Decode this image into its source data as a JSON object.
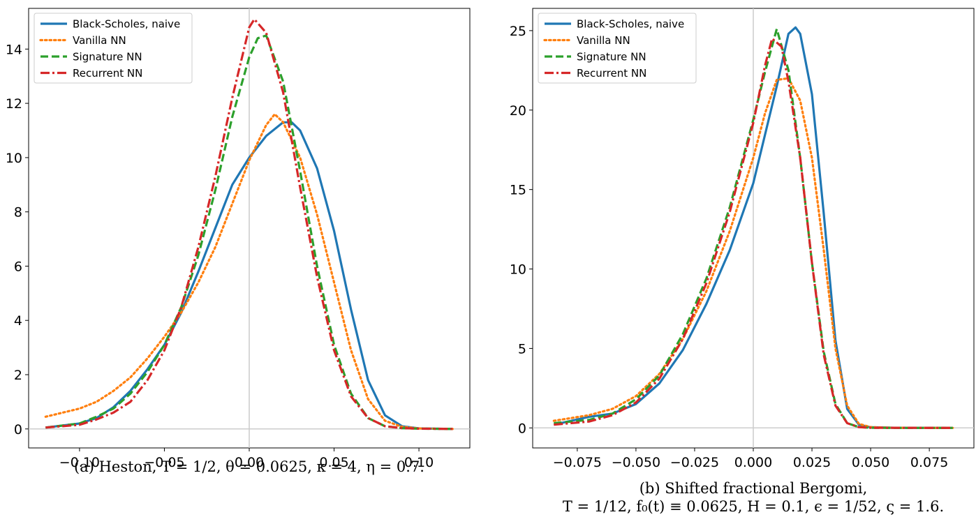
{
  "chart_data": [
    {
      "type": "line",
      "caption": "(a) Heston, T = 1/2, θ = 0.0625, κ = 4, η = 0.7.",
      "xlim": [
        -0.13,
        0.13
      ],
      "ylim": [
        -0.7,
        15.5
      ],
      "xticks": [
        -0.1,
        -0.05,
        0.0,
        0.05,
        0.1
      ],
      "xtick_labels": [
        "−0.10",
        "−0.05",
        "0.00",
        "0.05",
        "0.10"
      ],
      "yticks": [
        0,
        2,
        4,
        6,
        8,
        10,
        12,
        14
      ],
      "ytick_labels": [
        "0",
        "2",
        "4",
        "6",
        "8",
        "10",
        "12",
        "14"
      ],
      "reference_lines": {
        "x": 0,
        "y": 0
      },
      "legend": {
        "position": "top-left"
      },
      "series": [
        {
          "name": "Black-Scholes, naive",
          "color": "#1f77b4",
          "style": "solid",
          "x": [
            -0.12,
            -0.1,
            -0.09,
            -0.08,
            -0.07,
            -0.06,
            -0.05,
            -0.04,
            -0.03,
            -0.02,
            -0.01,
            0.0,
            0.01,
            0.02,
            0.025,
            0.03,
            0.04,
            0.05,
            0.06,
            0.07,
            0.08,
            0.09,
            0.1,
            0.12
          ],
          "y": [
            0.05,
            0.2,
            0.4,
            0.8,
            1.4,
            2.2,
            3.1,
            4.3,
            5.8,
            7.4,
            9.0,
            10.0,
            10.8,
            11.3,
            11.3,
            11.0,
            9.6,
            7.3,
            4.4,
            1.8,
            0.5,
            0.1,
            0.02,
            0.0
          ]
        },
        {
          "name": "Vanilla NN",
          "color": "#ff7f0e",
          "style": "dotted",
          "x": [
            -0.12,
            -0.1,
            -0.09,
            -0.08,
            -0.07,
            -0.06,
            -0.05,
            -0.04,
            -0.03,
            -0.02,
            -0.01,
            0.0,
            0.01,
            0.015,
            0.02,
            0.03,
            0.04,
            0.05,
            0.06,
            0.07,
            0.08,
            0.09,
            0.1,
            0.12
          ],
          "y": [
            0.45,
            0.75,
            1.0,
            1.4,
            1.9,
            2.6,
            3.4,
            4.3,
            5.4,
            6.7,
            8.3,
            9.9,
            11.2,
            11.6,
            11.3,
            10.0,
            7.9,
            5.4,
            2.9,
            1.1,
            0.3,
            0.08,
            0.02,
            0.0
          ]
        },
        {
          "name": "Signature NN",
          "color": "#2ca02c",
          "style": "dashed",
          "x": [
            -0.12,
            -0.1,
            -0.09,
            -0.08,
            -0.07,
            -0.06,
            -0.05,
            -0.04,
            -0.03,
            -0.02,
            -0.01,
            0.0,
            0.005,
            0.01,
            0.02,
            0.03,
            0.04,
            0.05,
            0.06,
            0.07,
            0.08,
            0.09,
            0.1,
            0.12
          ],
          "y": [
            0.05,
            0.2,
            0.45,
            0.75,
            1.3,
            2.1,
            3.1,
            4.5,
            6.4,
            8.8,
            11.5,
            13.7,
            14.4,
            14.5,
            12.8,
            9.5,
            6.0,
            3.1,
            1.3,
            0.4,
            0.1,
            0.03,
            0.01,
            0.0
          ]
        },
        {
          "name": "Recurrent NN",
          "color": "#d62728",
          "style": "dashdot",
          "x": [
            -0.12,
            -0.1,
            -0.09,
            -0.08,
            -0.07,
            -0.06,
            -0.05,
            -0.04,
            -0.03,
            -0.02,
            -0.01,
            0.0,
            0.003,
            0.01,
            0.02,
            0.03,
            0.04,
            0.05,
            0.06,
            0.07,
            0.08,
            0.09,
            0.1,
            0.12
          ],
          "y": [
            0.05,
            0.15,
            0.35,
            0.6,
            1.0,
            1.8,
            2.9,
            4.5,
            6.7,
            9.3,
            12.2,
            14.8,
            15.1,
            14.6,
            12.4,
            8.9,
            5.6,
            2.9,
            1.2,
            0.4,
            0.1,
            0.03,
            0.01,
            0.0
          ]
        }
      ]
    },
    {
      "type": "line",
      "caption_line1": "(b) Shifted fractional Bergomi,",
      "caption_line2": "T = 1/12, f₀(t) ≡ 0.0625, H = 0.1, ϵ = 1/52, ς = 1.6.",
      "xlim": [
        -0.094,
        0.094
      ],
      "ylim": [
        -1.26,
        26.4
      ],
      "xticks": [
        -0.075,
        -0.05,
        -0.025,
        0.0,
        0.025,
        0.05,
        0.075
      ],
      "xtick_labels": [
        "−0.075",
        "−0.050",
        "−0.025",
        "0.000",
        "0.025",
        "0.050",
        "0.075"
      ],
      "yticks": [
        0,
        5,
        10,
        15,
        20,
        25
      ],
      "ytick_labels": [
        "0",
        "5",
        "10",
        "15",
        "20",
        "25"
      ],
      "reference_lines": {
        "x": 0,
        "y": 0
      },
      "legend": {
        "position": "top-left"
      },
      "series": [
        {
          "name": "Black-Scholes, naive",
          "color": "#1f77b4",
          "style": "solid",
          "x": [
            -0.085,
            -0.07,
            -0.06,
            -0.05,
            -0.04,
            -0.03,
            -0.02,
            -0.01,
            0.0,
            0.01,
            0.015,
            0.018,
            0.02,
            0.025,
            0.03,
            0.035,
            0.04,
            0.045,
            0.05,
            0.06,
            0.085
          ],
          "y": [
            0.2,
            0.7,
            0.9,
            1.5,
            2.8,
            4.9,
            7.8,
            11.2,
            15.4,
            21.5,
            24.8,
            25.2,
            24.8,
            21.0,
            13.5,
            5.5,
            1.2,
            0.2,
            0.04,
            0.01,
            0.0
          ]
        },
        {
          "name": "Vanilla NN",
          "color": "#ff7f0e",
          "style": "dotted",
          "x": [
            -0.085,
            -0.07,
            -0.06,
            -0.05,
            -0.04,
            -0.03,
            -0.02,
            -0.01,
            0.0,
            0.005,
            0.01,
            0.015,
            0.02,
            0.025,
            0.03,
            0.035,
            0.04,
            0.045,
            0.05,
            0.06,
            0.085
          ],
          "y": [
            0.45,
            0.8,
            1.2,
            2.0,
            3.4,
            5.6,
            8.6,
            12.4,
            17.0,
            19.8,
            21.9,
            22.0,
            20.6,
            17.0,
            11.2,
            5.0,
            1.4,
            0.25,
            0.05,
            0.01,
            0.0
          ]
        },
        {
          "name": "Signature NN",
          "color": "#2ca02c",
          "style": "dashed",
          "x": [
            -0.085,
            -0.07,
            -0.06,
            -0.05,
            -0.04,
            -0.03,
            -0.02,
            -0.01,
            0.0,
            0.005,
            0.01,
            0.015,
            0.02,
            0.025,
            0.03,
            0.035,
            0.04,
            0.045,
            0.05,
            0.06,
            0.085
          ],
          "y": [
            0.3,
            0.5,
            0.9,
            1.8,
            3.3,
            5.9,
            9.4,
            13.9,
            19.4,
            22.4,
            25.1,
            22.5,
            17.0,
            10.4,
            4.8,
            1.5,
            0.3,
            0.05,
            0.01,
            0.0,
            0.0
          ]
        },
        {
          "name": "Recurrent NN",
          "color": "#d62728",
          "style": "dashdot",
          "x": [
            -0.085,
            -0.07,
            -0.06,
            -0.05,
            -0.04,
            -0.03,
            -0.02,
            -0.01,
            0.0,
            0.005,
            0.008,
            0.012,
            0.015,
            0.02,
            0.025,
            0.03,
            0.035,
            0.04,
            0.045,
            0.05,
            0.085
          ],
          "y": [
            0.2,
            0.4,
            0.8,
            1.6,
            3.1,
            5.6,
            9.1,
            13.6,
            19.2,
            22.8,
            24.5,
            24.0,
            21.8,
            17.0,
            10.4,
            4.6,
            1.4,
            0.3,
            0.05,
            0.01,
            0.0
          ]
        }
      ]
    }
  ]
}
